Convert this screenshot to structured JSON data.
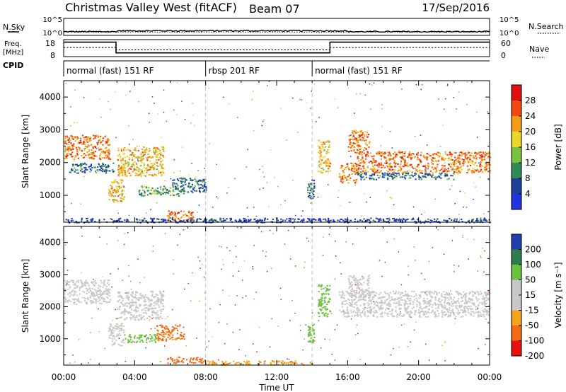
{
  "header": {
    "title": "Christmas Valley West (fitACF)",
    "beam": "Beam 07",
    "date": "17/Sep/2016"
  },
  "noise_panel": {
    "left_label": "N.Sky",
    "right_label": "N.Search",
    "y_tick_top": "10^5",
    "y_tick_bottom": "10^0",
    "ylim_log10": [
      0,
      5
    ],
    "sky_level_log10": 1.1,
    "search_level_log10": 1.0
  },
  "freq_panel": {
    "left_label_1": "Freq.",
    "left_label_2": "[MHz]",
    "right_label": "Nave",
    "left_ticks": [
      "18",
      "8"
    ],
    "right_ticks": [
      "60",
      "0"
    ],
    "freq_ylim": [
      8,
      18
    ],
    "nave_ylim": [
      0,
      60
    ],
    "freq_steps": [
      {
        "start_h": 0.0,
        "end_h": 2.95,
        "freq": 16.5
      },
      {
        "start_h": 2.95,
        "end_h": 15.0,
        "freq": 10.2
      },
      {
        "start_h": 15.0,
        "end_h": 24.0,
        "freq": 16.5
      }
    ],
    "nave_steps": [
      {
        "start_h": 0.0,
        "end_h": 2.95,
        "nave": 32
      },
      {
        "start_h": 2.95,
        "end_h": 15.0,
        "nave": 24
      },
      {
        "start_h": 15.0,
        "end_h": 24.0,
        "nave": 32
      }
    ]
  },
  "cpid": {
    "label": "CPID",
    "segments": [
      {
        "start_h": 0.0,
        "end_h": 8.0,
        "text": "normal (fast) 151 RF"
      },
      {
        "start_h": 8.0,
        "end_h": 14.0,
        "text": "rbsp 201 RF"
      },
      {
        "start_h": 14.0,
        "end_h": 24.0,
        "text": "normal (fast) 151 RF"
      }
    ]
  },
  "x_axis": {
    "title": "Time UT",
    "tick_labels": [
      "00:00",
      "04:00",
      "08:00",
      "12:00",
      "16:00",
      "20:00",
      "00:00"
    ],
    "xlim_hours": [
      0,
      24
    ]
  },
  "chart_data": [
    {
      "type": "heatmap",
      "ylabel": "Slant Range [km]",
      "y_tick_labels": [
        "1000",
        "2000",
        "3000",
        "4000"
      ],
      "ylim": [
        180,
        4500
      ],
      "colorbar_label": "Power [dB]",
      "colorbar_ticks": [
        "28",
        "24",
        "20",
        "16",
        "12",
        "8",
        "4"
      ],
      "colorbar_levels": [
        {
          "value": 4,
          "color": "#2233dd"
        },
        {
          "value": 8,
          "color": "#1c3f9a"
        },
        {
          "value": 12,
          "color": "#2f8a56"
        },
        {
          "value": 16,
          "color": "#79c240"
        },
        {
          "value": 20,
          "color": "#e8d628"
        },
        {
          "value": 24,
          "color": "#f59c18"
        },
        {
          "value": 28,
          "color": "#f04a10"
        },
        {
          "value": 32,
          "color": "#e01010"
        }
      ],
      "echo_regions": [
        {
          "h0": 0.0,
          "h1": 2.6,
          "r0": 2100,
          "r1": 2850,
          "power": 28
        },
        {
          "h0": 0.3,
          "h1": 2.8,
          "r0": 1700,
          "r1": 2000,
          "power": 12
        },
        {
          "h0": 2.5,
          "h1": 3.4,
          "r0": 800,
          "r1": 1500,
          "power": 24
        },
        {
          "h0": 3.0,
          "h1": 5.6,
          "r0": 1600,
          "r1": 2500,
          "power": 24
        },
        {
          "h0": 4.2,
          "h1": 6.8,
          "r0": 1000,
          "r1": 1300,
          "power": 16
        },
        {
          "h0": 6.0,
          "h1": 8.0,
          "r0": 1100,
          "r1": 1550,
          "power": 12
        },
        {
          "h0": 5.8,
          "h1": 7.3,
          "r0": 250,
          "r1": 550,
          "power": 28
        },
        {
          "h0": 13.7,
          "h1": 14.1,
          "r0": 900,
          "r1": 1500,
          "power": 12
        },
        {
          "h0": 14.3,
          "h1": 15.0,
          "r0": 1700,
          "r1": 2700,
          "power": 24
        },
        {
          "h0": 15.5,
          "h1": 16.5,
          "r0": 1400,
          "r1": 2000,
          "power": 28
        },
        {
          "h0": 16.0,
          "h1": 17.2,
          "r0": 2300,
          "r1": 3000,
          "power": 28
        },
        {
          "h0": 16.5,
          "h1": 24.0,
          "r0": 1700,
          "r1": 2350,
          "power": 28
        },
        {
          "h0": 16.5,
          "h1": 22.0,
          "r0": 1500,
          "r1": 1700,
          "power": 12
        },
        {
          "h0": 0.0,
          "h1": 24.0,
          "r0": 180,
          "r1": 320,
          "power": 8
        }
      ]
    },
    {
      "type": "heatmap",
      "ylabel": "Slant Range [km]",
      "y_tick_labels": [
        "1000",
        "2000",
        "3000",
        "4000"
      ],
      "ylim": [
        180,
        4500
      ],
      "colorbar_label": "Velocity [m s⁻¹]",
      "colorbar_ticks": [
        "200",
        "100",
        "50",
        "15",
        "-15",
        "-50",
        "-100",
        "-200"
      ],
      "colorbar_levels": [
        {
          "value": 200,
          "color": "#2040b0"
        },
        {
          "value": 100,
          "color": "#2e7d4a"
        },
        {
          "value": 50,
          "color": "#6cc040"
        },
        {
          "value": 15,
          "color": "#c8c8c8"
        },
        {
          "value": -15,
          "color": "#c8c8c8"
        },
        {
          "value": -50,
          "color": "#f5a21c"
        },
        {
          "value": -100,
          "color": "#f26a12"
        },
        {
          "value": -200,
          "color": "#e81010"
        }
      ],
      "echo_regions": [
        {
          "h0": 0.0,
          "h1": 2.6,
          "r0": 2100,
          "r1": 2850,
          "velocity": 0
        },
        {
          "h0": 3.0,
          "h1": 5.6,
          "r0": 1600,
          "r1": 2500,
          "velocity": 0
        },
        {
          "h0": 2.5,
          "h1": 3.4,
          "r0": 800,
          "r1": 1500,
          "velocity": 0
        },
        {
          "h0": 3.3,
          "h1": 5.2,
          "r0": 900,
          "r1": 1150,
          "velocity": 40
        },
        {
          "h0": 5.2,
          "h1": 6.8,
          "r0": 950,
          "r1": 1450,
          "velocity": -60
        },
        {
          "h0": 5.8,
          "h1": 8.0,
          "r0": 250,
          "r1": 450,
          "velocity": -80
        },
        {
          "h0": 8.0,
          "h1": 14.0,
          "r0": 200,
          "r1": 330,
          "velocity": -40
        },
        {
          "h0": 13.7,
          "h1": 14.1,
          "r0": 900,
          "r1": 1500,
          "velocity": 30
        },
        {
          "h0": 14.3,
          "h1": 15.0,
          "r0": 1700,
          "r1": 2700,
          "velocity": 30
        },
        {
          "h0": 15.5,
          "h1": 24.0,
          "r0": 1700,
          "r1": 2500,
          "velocity": 0
        },
        {
          "h0": 16.0,
          "h1": 17.2,
          "r0": 2300,
          "r1": 3000,
          "velocity": 0
        }
      ]
    }
  ]
}
